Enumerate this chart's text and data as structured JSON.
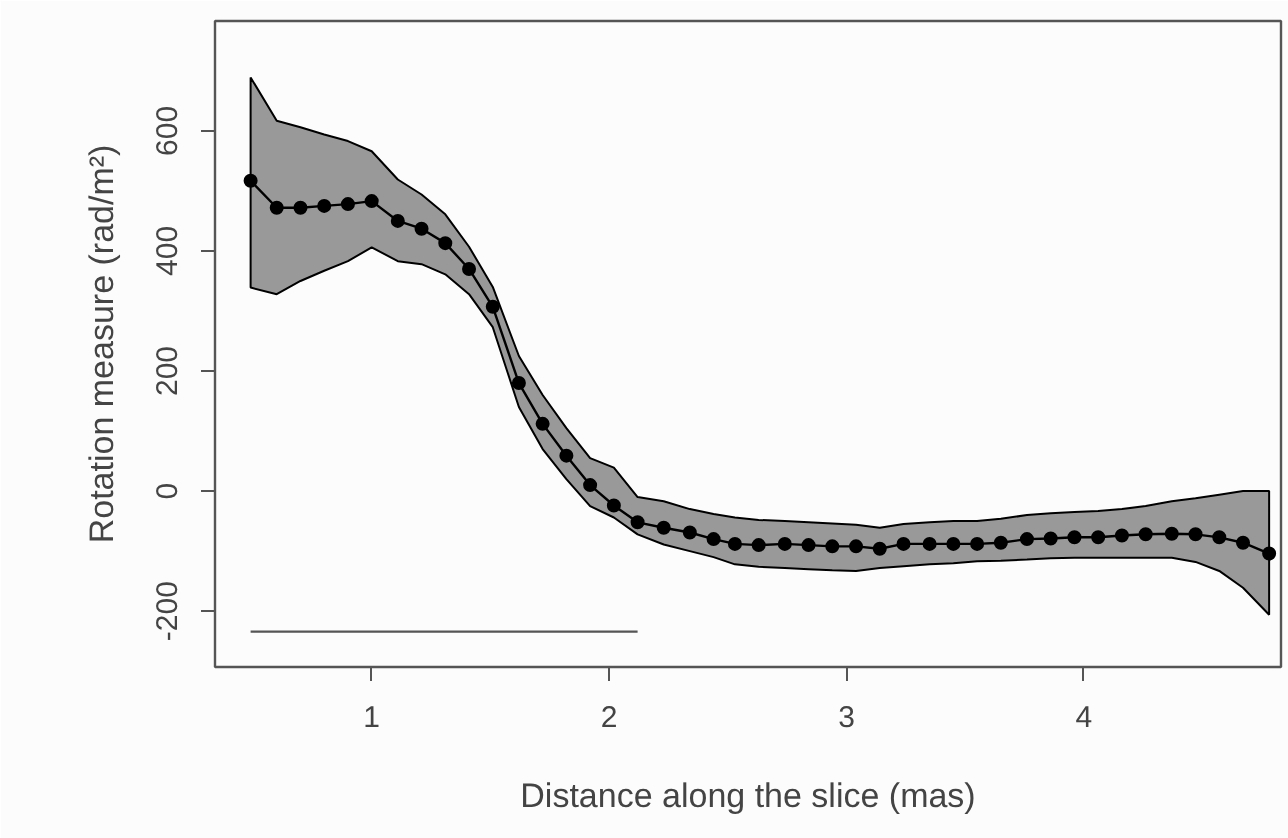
{
  "chart_data": {
    "type": "line",
    "xlabel": "Distance along the slice (mas)",
    "ylabel": "Rotation measure (rad/m²)",
    "xlim": [
      0.34,
      4.83
    ],
    "ylim": [
      -293,
      783
    ],
    "xticks": [
      1,
      2,
      3,
      4
    ],
    "yticks": [
      -200,
      0,
      200,
      400,
      600
    ],
    "grid": false,
    "marker": "circle",
    "line_style": "solid",
    "series": [
      {
        "color": "#000000",
        "x": [
          0.49,
          0.6,
          0.7,
          0.8,
          0.9,
          1.0,
          1.11,
          1.21,
          1.31,
          1.41,
          1.51,
          1.62,
          1.72,
          1.82,
          1.92,
          2.02,
          2.12,
          2.23,
          2.34,
          2.44,
          2.53,
          2.63,
          2.74,
          2.84,
          2.94,
          3.04,
          3.14,
          3.24,
          3.35,
          3.45,
          3.55,
          3.65,
          3.76,
          3.86,
          3.96,
          4.06,
          4.16,
          4.26,
          4.37,
          4.47,
          4.57,
          4.67,
          4.78
        ],
        "values": [
          517,
          472,
          472,
          475,
          478,
          483,
          450,
          437,
          413,
          370,
          307,
          180,
          112,
          59,
          10,
          -24,
          -52,
          -61,
          -69,
          -80,
          -88,
          -90,
          -88,
          -90,
          -92,
          -92,
          -96,
          -88,
          -88,
          -88,
          -88,
          -86,
          -80,
          -79,
          -77,
          -77,
          -74,
          -72,
          -71,
          -72,
          -77,
          -86,
          -104
        ],
        "upper": [
          689,
          617,
          606,
          594,
          583,
          566,
          519,
          494,
          461,
          407,
          340,
          225,
          160,
          105,
          55,
          39,
          -10,
          -17,
          -30,
          -38,
          -44,
          -48,
          -50,
          -52,
          -54,
          -56,
          -61,
          -55,
          -52,
          -50,
          -50,
          -46,
          -40,
          -37,
          -35,
          -33,
          -30,
          -25,
          -17,
          -12,
          -6,
          0,
          0
        ],
        "lower": [
          339,
          328,
          350,
          367,
          383,
          406,
          383,
          378,
          361,
          328,
          273,
          140,
          70,
          20,
          -25,
          -44,
          -72,
          -89,
          -100,
          -110,
          -122,
          -126,
          -128,
          -130,
          -132,
          -133,
          -128,
          -125,
          -122,
          -120,
          -117,
          -116,
          -114,
          -112,
          -111,
          -111,
          -111,
          -111,
          -111,
          -118,
          -133,
          -161,
          -206
        ]
      },
      {
        "type": "line",
        "marker": "none",
        "color": "#555555",
        "x": [
          0.49,
          2.12
        ],
        "values": [
          -234,
          -234
        ]
      }
    ]
  }
}
